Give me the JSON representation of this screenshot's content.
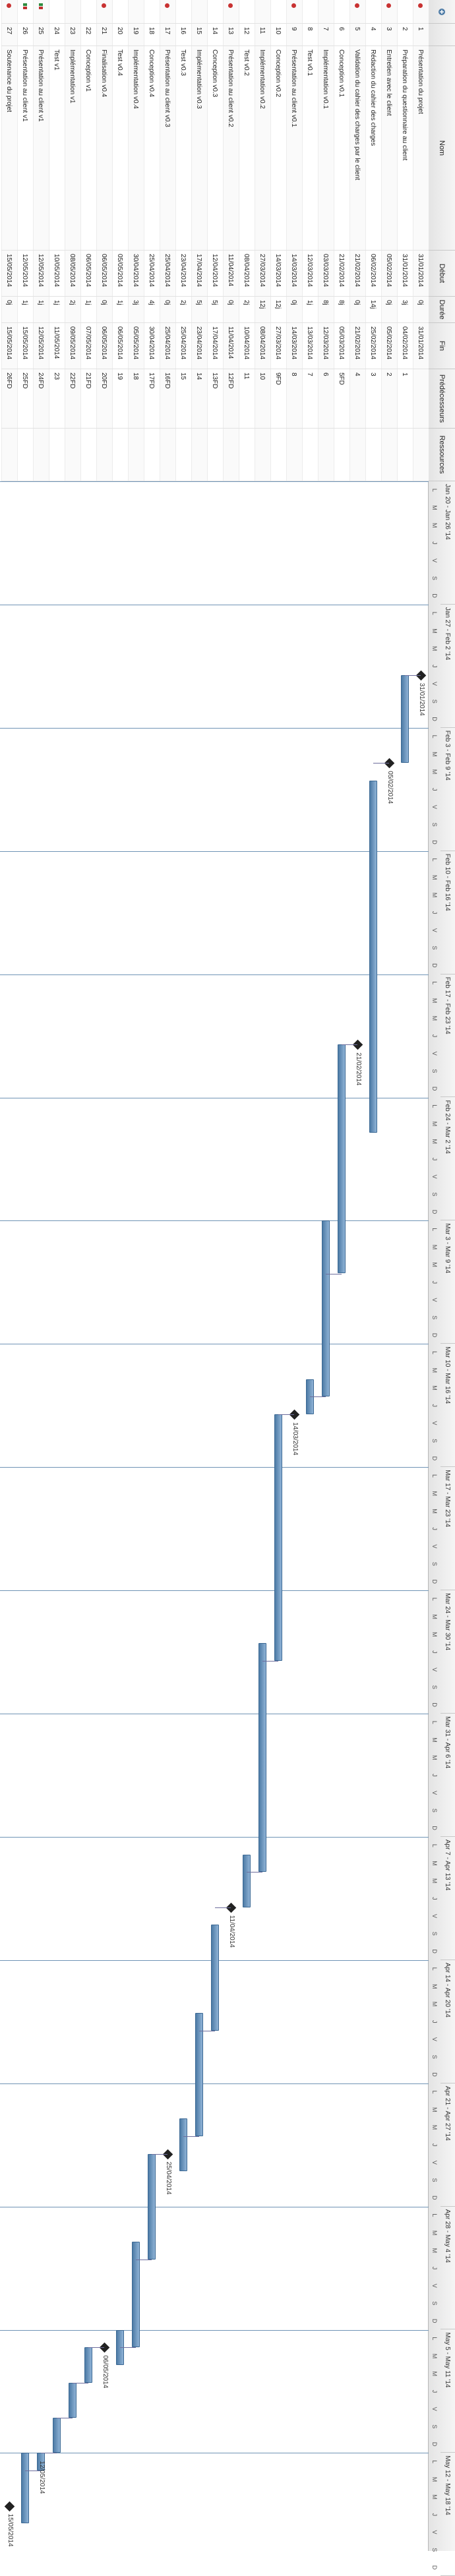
{
  "columns": {
    "index": "",
    "name": "Nom",
    "start": "Début",
    "duration": "Durée",
    "end": "Fin",
    "predecessors": "Prédécesseurs",
    "resources": "Ressources"
  },
  "weeks": [
    "Jan 20 - Jan 26 '14",
    "Jan 27 - Feb 2 '14",
    "Feb 3 - Feb 9 '14",
    "Feb 10 - Feb 16 '14",
    "Feb 17 - Feb 23 '14",
    "Feb 24 - Mar 2 '14",
    "Mar 3 - Mar 9 '14",
    "Mar 10 - Mar 16 '14",
    "Mar 17 - Mar 23 '14",
    "Mar 24 - Mar 30 '14",
    "Mar 31 - Apr 6 '14",
    "Apr 7 - Apr 13 '14",
    "Apr 14 - Apr 20 '14",
    "Apr 21 - Apr 27 '14",
    "Apr 28 - May 4 '14",
    "May 5 - May 11 '14",
    "May 12 - May 18 '14"
  ],
  "day_letters": [
    "L",
    "M",
    "M",
    "J",
    "V",
    "S",
    "D"
  ],
  "tasks": [
    {
      "id": "1",
      "name": "Présentation du projet",
      "duration": "0j",
      "start": "31/01/2014",
      "end": "31/01/2014",
      "pred": "",
      "res": ""
    },
    {
      "id": "2",
      "name": "Préparation du questionnaire au client",
      "duration": "3j",
      "start": "31/01/2014",
      "end": "04/02/2014",
      "pred": "1",
      "res": ""
    },
    {
      "id": "3",
      "name": "Entretien avec le client",
      "duration": "0j",
      "start": "05/02/2014",
      "end": "05/02/2014",
      "pred": "2",
      "res": ""
    },
    {
      "id": "4",
      "name": "Rédaction du cahier des charges",
      "duration": "14j",
      "start": "06/02/2014",
      "end": "25/02/2014",
      "pred": "3",
      "res": ""
    },
    {
      "id": "5",
      "name": "Validation du cahier des charges par le client",
      "duration": "0j",
      "start": "21/02/2014",
      "end": "21/02/2014",
      "pred": "4",
      "res": ""
    },
    {
      "id": "6",
      "name": "Conception v0.1",
      "duration": "8j",
      "start": "21/02/2014",
      "end": "05/03/2014",
      "pred": "5FD",
      "res": ""
    },
    {
      "id": "7",
      "name": "Implémentation v0.1",
      "duration": "8j",
      "start": "03/03/2014",
      "end": "12/03/2014",
      "pred": "6",
      "res": ""
    },
    {
      "id": "8",
      "name": "Test v0.1",
      "duration": "1j",
      "start": "12/03/2014",
      "end": "13/03/2014",
      "pred": "7",
      "res": ""
    },
    {
      "id": "9",
      "name": "Présentation au client v0.1",
      "duration": "0j",
      "start": "14/03/2014",
      "end": "14/03/2014",
      "pred": "8",
      "res": ""
    },
    {
      "id": "10",
      "name": "Conception v0.2",
      "duration": "12j",
      "start": "14/03/2014",
      "end": "27/03/2014",
      "pred": "9FD",
      "res": ""
    },
    {
      "id": "11",
      "name": "Implémentation v0.2",
      "duration": "12j",
      "start": "27/03/2014",
      "end": "08/04/2014",
      "pred": "10",
      "res": ""
    },
    {
      "id": "12",
      "name": "Test v0.2",
      "duration": "2j",
      "start": "08/04/2014",
      "end": "10/04/2014",
      "pred": "11",
      "res": ""
    },
    {
      "id": "13",
      "name": "Présentation au client v0.2",
      "duration": "0j",
      "start": "11/04/2014",
      "end": "11/04/2014",
      "pred": "12FD",
      "res": ""
    },
    {
      "id": "14",
      "name": "Conception v0.3",
      "duration": "5j",
      "start": "12/04/2014",
      "end": "17/04/2014",
      "pred": "13FD",
      "res": ""
    },
    {
      "id": "15",
      "name": "Implémentation v0.3",
      "duration": "5j",
      "start": "17/04/2014",
      "end": "23/04/2014",
      "pred": "14",
      "res": ""
    },
    {
      "id": "16",
      "name": "Test v0.3",
      "duration": "2j",
      "start": "23/04/2014",
      "end": "25/04/2014",
      "pred": "15",
      "res": ""
    },
    {
      "id": "17",
      "name": "Présentation au client v0.3",
      "duration": "0j",
      "start": "25/04/2014",
      "end": "25/04/2014",
      "pred": "16FD",
      "res": ""
    },
    {
      "id": "18",
      "name": "Conception v0.4",
      "duration": "4j",
      "start": "25/04/2014",
      "end": "30/04/2014",
      "pred": "17FD",
      "res": ""
    },
    {
      "id": "19",
      "name": "Implémentation v0.4",
      "duration": "3j",
      "start": "30/04/2014",
      "end": "05/05/2014",
      "pred": "18",
      "res": ""
    },
    {
      "id": "20",
      "name": "Test v0.4",
      "duration": "1j",
      "start": "05/05/2014",
      "end": "06/05/2014",
      "pred": "19",
      "res": ""
    },
    {
      "id": "21",
      "name": "Finalisation v0.4",
      "duration": "0j",
      "start": "06/05/2014",
      "end": "06/05/2014",
      "pred": "20FD",
      "res": ""
    },
    {
      "id": "22",
      "name": "Conception v1",
      "duration": "1j",
      "start": "06/05/2014",
      "end": "07/05/2014",
      "pred": "21FD",
      "res": ""
    },
    {
      "id": "23",
      "name": "Implémentation v1",
      "duration": "2j",
      "start": "08/05/2014",
      "end": "09/05/2014",
      "pred": "22FD",
      "res": ""
    },
    {
      "id": "24",
      "name": "Test v1",
      "duration": "1j",
      "start": "10/05/2014",
      "end": "11/05/2014",
      "pred": "23",
      "res": ""
    },
    {
      "id": "25",
      "name": "Présentation au client v1",
      "duration": "1j",
      "start": "12/05/2014",
      "end": "12/05/2014",
      "pred": "24FD",
      "res": ""
    },
    {
      "id": "26",
      "name": "Présentation au client v1",
      "duration": "1j",
      "start": "12/05/2014",
      "end": "15/05/2014",
      "pred": "25FD",
      "res": ""
    },
    {
      "id": "27",
      "name": "Soutenance du projet",
      "duration": "0j",
      "start": "15/05/2014",
      "end": "15/05/2014",
      "pred": "26FD",
      "res": ""
    }
  ],
  "milestones": [
    {
      "row": 0,
      "label": "31/01/2014"
    },
    {
      "row": 2,
      "label": "05/02/2014"
    },
    {
      "row": 4,
      "label": "21/02/2014"
    },
    {
      "row": 8,
      "label": "14/03/2014"
    },
    {
      "row": 12,
      "label": "11/04/2014"
    },
    {
      "row": 16,
      "label": "25/04/2014"
    },
    {
      "row": 20,
      "label": "06/05/2014"
    },
    {
      "row": 24,
      "label": "12/05/2014"
    },
    {
      "row": 26,
      "label": "15/05/2014"
    }
  ],
  "timeline_origin": "2014-01-20",
  "colors": {
    "bar": "#5b87b3",
    "milestone": "#222222",
    "critical_dot": "#c83232",
    "flag_green": "#2e8b3e",
    "flag_red": "#c03030"
  }
}
